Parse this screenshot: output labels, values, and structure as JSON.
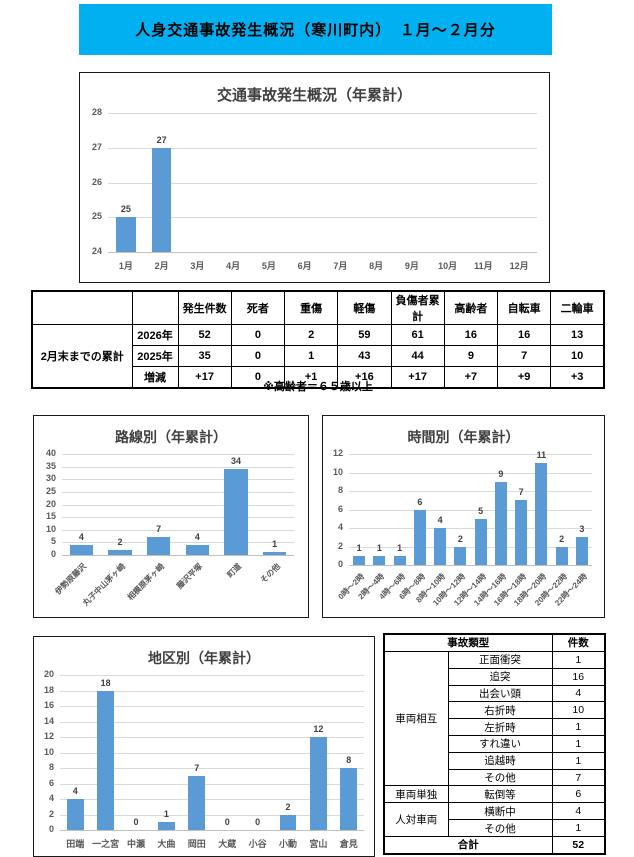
{
  "colors": {
    "banner_bg": "#00b0f0",
    "bar": "#5b9bd5",
    "gridline": "#d9d9d9",
    "axis_line": "#bfbfbf"
  },
  "banner": {
    "title": "人身交通事故発生概況（寒川町内）　１月～２月分"
  },
  "summary_table": {
    "group_label": "2月末までの累計",
    "col_headers": [
      "発生件数",
      "死者",
      "重傷",
      "軽傷",
      "負傷者累計",
      "高齢者",
      "自転車",
      "二輪車"
    ],
    "rows": [
      {
        "label": "2026年",
        "values": [
          "52",
          "0",
          "2",
          "59",
          "61",
          "16",
          "16",
          "13"
        ]
      },
      {
        "label": "2025年",
        "values": [
          "35",
          "0",
          "1",
          "43",
          "44",
          "9",
          "7",
          "10"
        ]
      },
      {
        "label": "増減",
        "values": [
          "+17",
          "0",
          "+1",
          "+16",
          "+17",
          "+7",
          "+9",
          "+3"
        ]
      }
    ],
    "note": "※高齢者＝６５歳以上"
  },
  "accident_type_table": {
    "title": "事故類型",
    "count_header": "件数",
    "groups": [
      "車両相互",
      "車両単独",
      "人対車両"
    ],
    "rows": [
      {
        "type": "正面衝突",
        "count": "1"
      },
      {
        "type": "追突",
        "count": "16"
      },
      {
        "type": "出会い頭",
        "count": "4"
      },
      {
        "type": "右折時",
        "count": "10"
      },
      {
        "type": "左折時",
        "count": "1"
      },
      {
        "type": "すれ違い",
        "count": "1"
      },
      {
        "type": "追越時",
        "count": "1"
      },
      {
        "type": "その他",
        "count": "7"
      },
      {
        "type": "転倒等",
        "count": "6"
      },
      {
        "type": "横断中",
        "count": "4"
      },
      {
        "type": "その他",
        "count": "1"
      }
    ],
    "total_label": "合計",
    "total_value": "52"
  },
  "chart_data": [
    {
      "id": "overview",
      "type": "bar",
      "title": "交通事故発生概況（年累計）",
      "categories": [
        "1月",
        "2月",
        "3月",
        "4月",
        "5月",
        "6月",
        "7月",
        "8月",
        "9月",
        "10月",
        "11月",
        "12月"
      ],
      "values": [
        25,
        27,
        null,
        null,
        null,
        null,
        null,
        null,
        null,
        null,
        null,
        null
      ],
      "xlabel": "",
      "ylabel": "",
      "ylim": [
        24,
        28
      ],
      "ystep": 1,
      "grid": true,
      "tick_label_rotation": 0
    },
    {
      "id": "route",
      "type": "bar",
      "title": "路線別（年累計）",
      "categories": [
        "伊勢原藤沢",
        "丸子中山茅ヶ崎",
        "相模原茅ヶ崎",
        "藤沢平塚",
        "町道",
        "その他"
      ],
      "values": [
        4,
        2,
        7,
        4,
        34,
        1
      ],
      "xlabel": "",
      "ylabel": "",
      "ylim": [
        0,
        40
      ],
      "ystep": 5,
      "grid": true,
      "tick_label_rotation": 45
    },
    {
      "id": "time",
      "type": "bar",
      "title": "時間別（年累計）",
      "categories": [
        "0時～2時",
        "2時～4時",
        "4時～6時",
        "6時～8時",
        "8時～10時",
        "10時～12時",
        "12時～14時",
        "14時～16時",
        "16時～18時",
        "18時～20時",
        "20時～22時",
        "22時～24時"
      ],
      "values": [
        1,
        1,
        1,
        6,
        4,
        2,
        5,
        9,
        7,
        11,
        2,
        3
      ],
      "xlabel": "",
      "ylabel": "",
      "ylim": [
        0,
        12
      ],
      "ystep": 2,
      "grid": true,
      "tick_label_rotation": 45
    },
    {
      "id": "district",
      "type": "bar",
      "title": "地区別（年累計）",
      "categories": [
        "田端",
        "一之宮",
        "中瀬",
        "大曲",
        "岡田",
        "大蔵",
        "小谷",
        "小動",
        "宮山",
        "倉見"
      ],
      "values": [
        4,
        18,
        0,
        1,
        7,
        0,
        0,
        2,
        12,
        8
      ],
      "xlabel": "",
      "ylabel": "",
      "ylim": [
        0,
        20
      ],
      "ystep": 2,
      "grid": true,
      "tick_label_rotation": 0
    }
  ]
}
